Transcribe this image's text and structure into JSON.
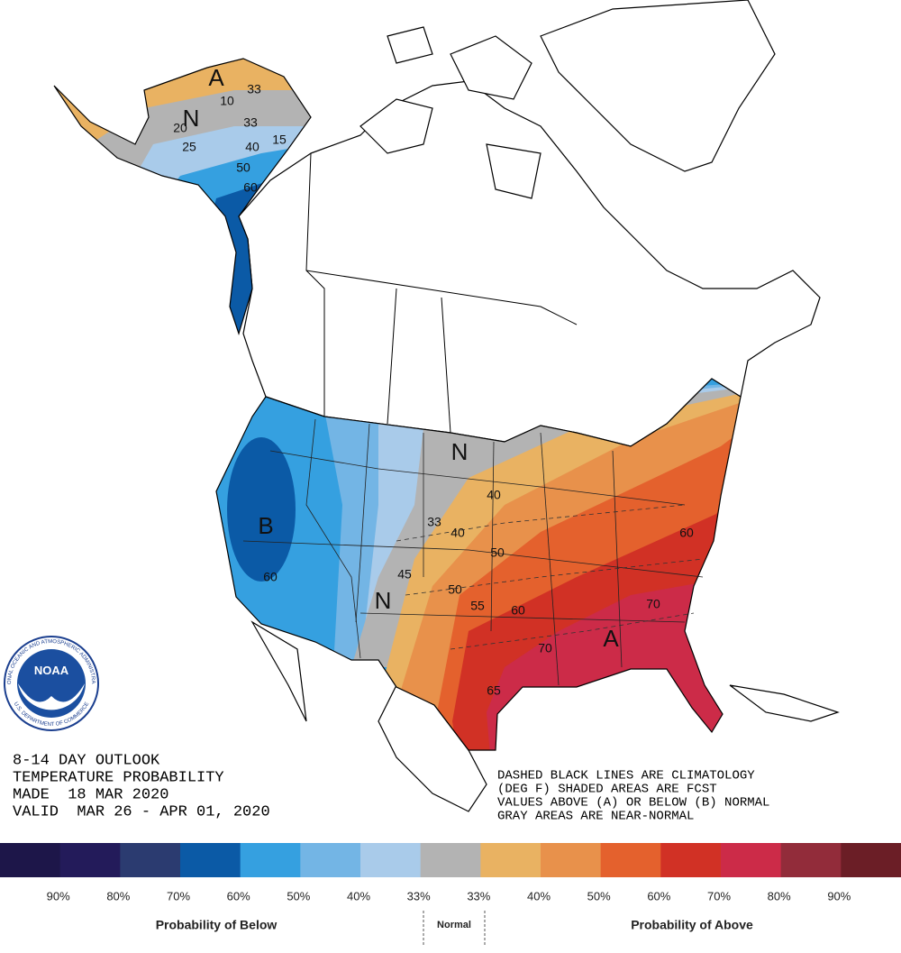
{
  "logo": {
    "name": "NOAA",
    "ring_top": "NATIONAL OCEANIC AND ATMOSPHERIC ADMINISTRATION",
    "ring_bottom": "U.S. DEPARTMENT OF COMMERCE"
  },
  "header": {
    "lines": [
      "8-14 DAY OUTLOOK",
      "TEMPERATURE PROBABILITY",
      "MADE  18 MAR 2020",
      "VALID  MAR 26 - APR 01, 2020"
    ]
  },
  "notes": {
    "lines": [
      "DASHED BLACK LINES ARE CLIMATOLOGY",
      "(DEG F) SHADED AREAS ARE FCST",
      "VALUES ABOVE (A) OR BELOW (B) NORMAL",
      "GRAY AREAS ARE NEAR-NORMAL"
    ]
  },
  "map": {
    "labels": [
      "A",
      "33",
      "10",
      "N",
      "20",
      "33",
      "25",
      "40",
      "15",
      "50",
      "60",
      "N",
      "B",
      "60",
      "40",
      "33",
      "40",
      "50",
      "45",
      "50",
      "55",
      "60",
      "N",
      "60",
      "70",
      "A",
      "70",
      "65"
    ]
  },
  "legend": {
    "colors": [
      "#1d1649",
      "#231b5a",
      "#2b3b70",
      "#0b5aa6",
      "#35a0e0",
      "#73b5e5",
      "#a9cbea",
      "#b3b3b3",
      "#e9b262",
      "#e8914b",
      "#e4612d",
      "#d13125",
      "#cc2b48",
      "#922c3a",
      "#6b1e26"
    ],
    "ticks": [
      "90%",
      "80%",
      "70%",
      "60%",
      "50%",
      "40%",
      "33%",
      "33%",
      "40%",
      "50%",
      "60%",
      "70%",
      "80%",
      "90%"
    ],
    "below": "Probability of Below",
    "normal": "Normal",
    "above": "Probability of Above"
  }
}
